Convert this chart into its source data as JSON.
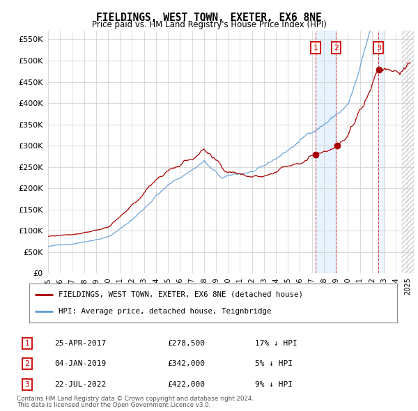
{
  "title": "FIELDINGS, WEST TOWN, EXETER, EX6 8NE",
  "subtitle": "Price paid vs. HM Land Registry's House Price Index (HPI)",
  "ylabel_ticks": [
    "£0",
    "£50K",
    "£100K",
    "£150K",
    "£200K",
    "£250K",
    "£300K",
    "£350K",
    "£400K",
    "£450K",
    "£500K",
    "£550K"
  ],
  "ytick_values": [
    0,
    50000,
    100000,
    150000,
    200000,
    250000,
    300000,
    350000,
    400000,
    450000,
    500000,
    550000
  ],
  "ylim": [
    0,
    570000
  ],
  "hpi_color": "#5b9bd5",
  "price_color": "#aa0000",
  "vline_color": "#cc0000",
  "sale_points": [
    {
      "date_num": 2017.32,
      "price": 278500,
      "label": "1"
    },
    {
      "date_num": 2019.02,
      "price": 342000,
      "label": "2"
    },
    {
      "date_num": 2022.55,
      "price": 422000,
      "label": "3"
    }
  ],
  "table_rows": [
    {
      "num": "1",
      "date": "25-APR-2017",
      "price": "£278,500",
      "pct": "17% ↓ HPI"
    },
    {
      "num": "2",
      "date": "04-JAN-2019",
      "price": "£342,000",
      "pct": "5% ↓ HPI"
    },
    {
      "num": "3",
      "date": "22-JUL-2022",
      "price": "£422,000",
      "pct": "9% ↓ HPI"
    }
  ],
  "legend_entries": [
    {
      "label": "FIELDINGS, WEST TOWN, EXETER, EX6 8NE (detached house)",
      "color": "#aa0000"
    },
    {
      "label": "HPI: Average price, detached house, Teignbridge",
      "color": "#5b9bd5"
    }
  ],
  "footnote1": "Contains HM Land Registry data © Crown copyright and database right 2024.",
  "footnote2": "This data is licensed under the Open Government Licence v3.0.",
  "background_color": "#ffffff",
  "grid_color": "#cccccc",
  "box_color": "#cc0000",
  "shade_color": "#ddeeff",
  "hatch_color": "#cccccc"
}
